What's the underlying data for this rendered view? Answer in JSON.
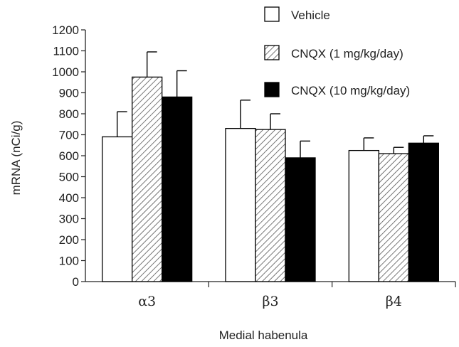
{
  "chart_data": {
    "type": "bar",
    "xlabel": "Medial habenula",
    "ylabel": "mRNA (nCi/g)",
    "ylim": [
      0,
      1200
    ],
    "yticks": [
      0,
      100,
      200,
      300,
      400,
      500,
      600,
      700,
      800,
      900,
      1000,
      1100,
      1200
    ],
    "categories": [
      "α3",
      "β3",
      "β4"
    ],
    "legend_position": "top-right",
    "grid": false,
    "series": [
      {
        "name": "Vehicle",
        "fill": "white",
        "values": [
          690,
          730,
          625
        ],
        "errors": [
          120,
          135,
          60
        ]
      },
      {
        "name": "CNQX (1 mg/kg/day)",
        "fill": "hatched",
        "values": [
          975,
          725,
          610
        ],
        "errors": [
          120,
          75,
          30
        ]
      },
      {
        "name": "CNQX (10 mg/kg/day)",
        "fill": "black",
        "values": [
          880,
          590,
          660
        ],
        "errors": [
          125,
          80,
          35
        ]
      }
    ]
  }
}
